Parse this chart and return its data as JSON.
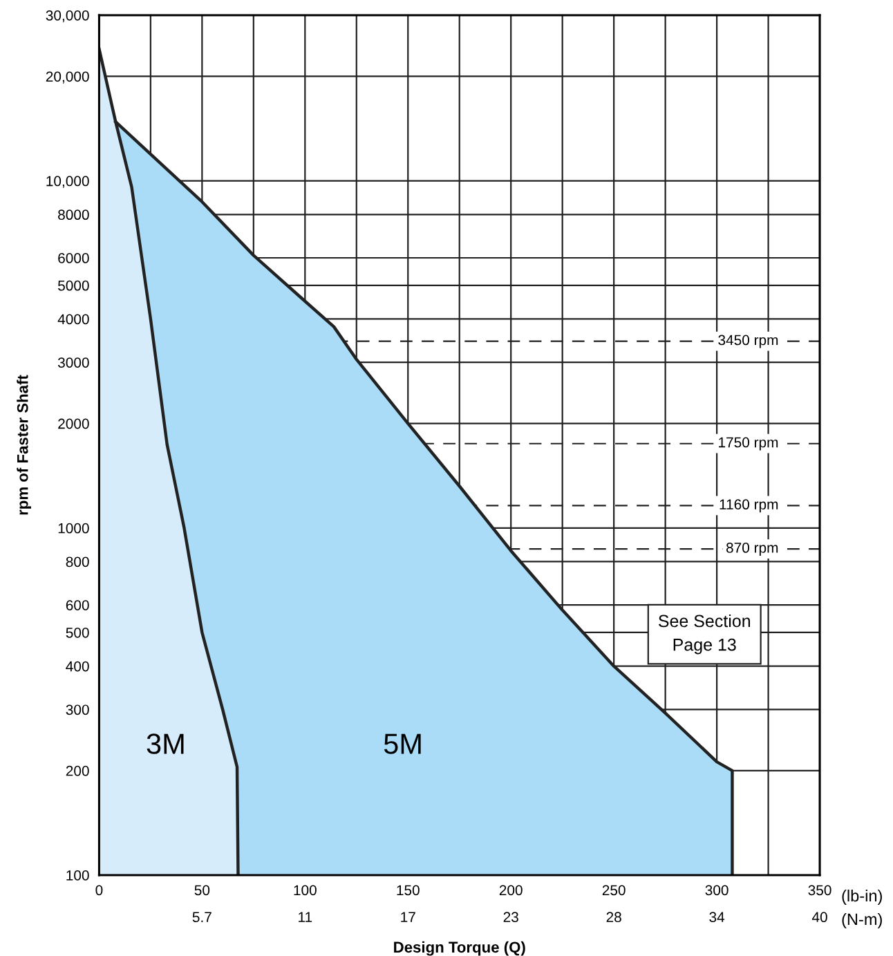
{
  "chart_data": {
    "type": "area",
    "xlabel": "Design Torque (Q)",
    "ylabel": "rpm of Faster Shaft",
    "log": "y",
    "grid": true,
    "legend": false,
    "xlim": [
      0,
      350
    ],
    "xticks": [
      0,
      {
        "value": 25,
        "label": null
      },
      50,
      {
        "value": 75,
        "label": null
      },
      100,
      {
        "value": 125,
        "label": null
      },
      150,
      {
        "value": 175,
        "label": null
      },
      200,
      {
        "value": 225,
        "label": null
      },
      250,
      {
        "value": 275,
        "label": null
      },
      300,
      {
        "value": 325,
        "label": null
      },
      350
    ],
    "x2lim": [
      0,
      39.55
    ],
    "x2ticks": [
      {
        "value": 5.65,
        "label": "5.7"
      },
      {
        "value": 11.3,
        "label": "11"
      },
      {
        "value": 16.95,
        "label": "17"
      },
      {
        "value": 22.6,
        "label": "23"
      },
      {
        "value": 28.25,
        "label": "28"
      },
      {
        "value": 33.9,
        "label": "34"
      },
      {
        "value": 39.55,
        "label": "40"
      }
    ],
    "ylim": [
      100,
      30000
    ],
    "yticks": [
      100,
      200,
      300,
      400,
      500,
      600,
      800,
      1000,
      2000,
      3000,
      4000,
      5000,
      6000,
      8000,
      {
        "value": 10000,
        "label": "10,000"
      },
      {
        "value": 20000,
        "label": "20,000"
      },
      {
        "value": 30000,
        "label": "30,000"
      }
    ],
    "series": [
      {
        "name": "5M",
        "color": "#aadcf7",
        "x": [
          8,
          50,
          75,
          100,
          114,
          125,
          150,
          175,
          200,
          225,
          250,
          275,
          300,
          307.5,
          307.5
        ],
        "values": [
          14800,
          8700,
          6100,
          4500,
          3800,
          3060,
          2000,
          1320,
          860,
          580,
          400,
          293,
          212,
          200,
          100
        ]
      },
      {
        "name": "3M",
        "color": "#d6ecfa",
        "x": [
          0,
          8,
          15.8,
          25,
          33,
          41.3,
          50,
          60,
          67,
          67.5
        ],
        "values": [
          24000,
          14800,
          9600,
          4000,
          1740,
          1000,
          500,
          300,
          205,
          100
        ]
      }
    ],
    "ref_lines": [
      {
        "axis": "y",
        "value": 3450,
        "label": "3450 rpm",
        "line_style": "dashed"
      },
      {
        "axis": "y",
        "value": 1750,
        "label": "1750 rpm",
        "line_style": "dashed"
      },
      {
        "axis": "y",
        "value": 1160,
        "label": "1160 rpm",
        "line_style": "dashed"
      },
      {
        "axis": "y",
        "value": 870,
        "label": "870 rpm",
        "line_style": "dashed"
      }
    ],
    "annotations": [
      "(lb-in)",
      "(N-m)",
      "See Section\nPage 13"
    ]
  }
}
